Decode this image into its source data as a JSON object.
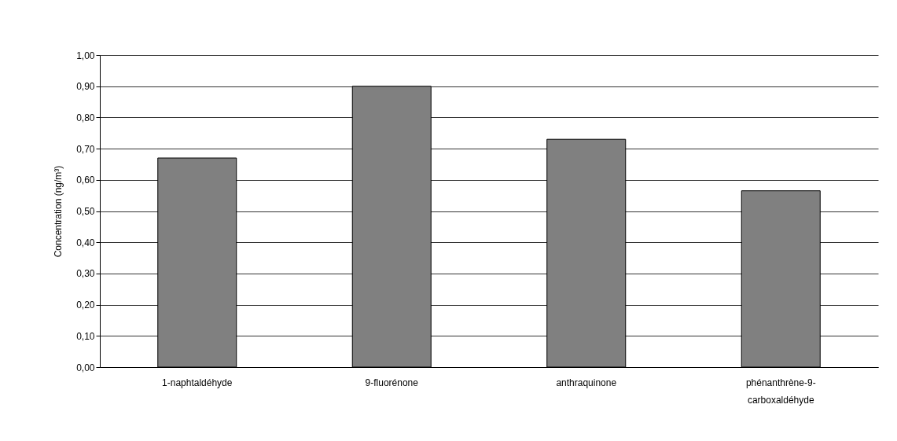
{
  "chart_data": {
    "type": "bar",
    "ylabel": "Concentration (ng/m³)",
    "categories": [
      "1-naphtaldéhyde",
      "9-fluorénone",
      "anthraquinone",
      "phénanthrène-9-carboxaldéhyde"
    ],
    "values": [
      0.67,
      0.9,
      0.73,
      0.565
    ],
    "color": "#808080",
    "ylim": [
      0,
      1
    ],
    "yticks": [
      {
        "value": 0,
        "label": "0,00"
      },
      {
        "value": 0.1,
        "label": "0,10"
      },
      {
        "value": 0.2,
        "label": "0,20"
      },
      {
        "value": 0.3,
        "label": "0,30"
      },
      {
        "value": 0.4,
        "label": "0,40"
      },
      {
        "value": 0.5,
        "label": "0,50"
      },
      {
        "value": 0.6,
        "label": "0,60"
      },
      {
        "value": 0.7,
        "label": "0,70"
      },
      {
        "value": 0.8,
        "label": "0,80"
      },
      {
        "value": 0.9,
        "label": "0,90"
      },
      {
        "value": 1,
        "label": "1,00"
      }
    ],
    "grid": "y",
    "legend": false
  }
}
